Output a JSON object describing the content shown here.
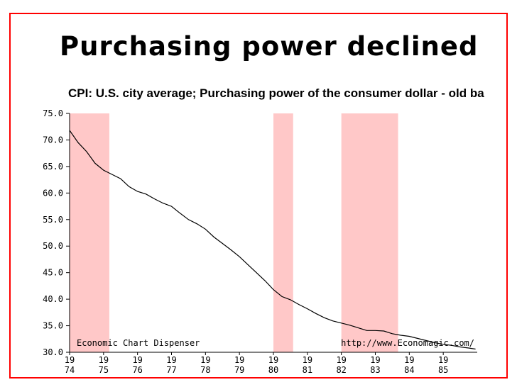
{
  "slide": {
    "title": "Purchasing power declined"
  },
  "chart_data": {
    "type": "line",
    "title": "CPI: U.S. city average; Purchasing power of the consumer dollar - old ba",
    "xlabel": "",
    "ylabel": "",
    "xlim": [
      1974,
      1986
    ],
    "ylim": [
      30,
      75
    ],
    "yticks": [
      "75.0",
      "70.0",
      "65.0",
      "60.0",
      "55.0",
      "50.0",
      "45.0",
      "40.0",
      "35.0",
      "30.0"
    ],
    "xticks": [
      {
        "year": 1974,
        "top": "19",
        "bottom": "74"
      },
      {
        "year": 1975,
        "top": "19",
        "bottom": "75"
      },
      {
        "year": 1976,
        "top": "19",
        "bottom": "76"
      },
      {
        "year": 1977,
        "top": "19",
        "bottom": "77"
      },
      {
        "year": 1978,
        "top": "19",
        "bottom": "78"
      },
      {
        "year": 1979,
        "top": "19",
        "bottom": "79"
      },
      {
        "year": 1980,
        "top": "19",
        "bottom": "80"
      },
      {
        "year": 1981,
        "top": "19",
        "bottom": "81"
      },
      {
        "year": 1982,
        "top": "19",
        "bottom": "82"
      },
      {
        "year": 1983,
        "top": "19",
        "bottom": "83"
      },
      {
        "year": 1984,
        "top": "19",
        "bottom": "84"
      },
      {
        "year": 1985,
        "top": "19",
        "bottom": "85"
      }
    ],
    "recessions": [
      [
        1974.0,
        1975.17
      ],
      [
        1980.0,
        1980.58
      ],
      [
        1982.0,
        1983.67
      ]
    ],
    "series": [
      {
        "name": "Purchasing power of the consumer dollar",
        "x": [
          1974.0,
          1974.25,
          1974.5,
          1974.75,
          1975.0,
          1975.25,
          1975.5,
          1975.75,
          1976.0,
          1976.25,
          1976.5,
          1976.75,
          1977.0,
          1977.25,
          1977.5,
          1977.75,
          1978.0,
          1978.25,
          1978.5,
          1978.75,
          1979.0,
          1979.25,
          1979.5,
          1979.75,
          1980.0,
          1980.25,
          1980.5,
          1980.75,
          1981.0,
          1981.25,
          1981.5,
          1981.75,
          1982.0,
          1982.25,
          1982.5,
          1982.75,
          1983.0,
          1983.25,
          1983.5,
          1983.75,
          1984.0,
          1984.25,
          1984.5,
          1984.75,
          1985.0,
          1985.25,
          1985.5,
          1985.75,
          1985.95
        ],
        "values": [
          71.8,
          69.5,
          67.8,
          65.6,
          64.3,
          63.5,
          62.7,
          61.2,
          60.3,
          59.8,
          58.9,
          58.1,
          57.5,
          56.2,
          55.0,
          54.2,
          53.2,
          51.7,
          50.5,
          49.3,
          48.0,
          46.5,
          45.0,
          43.5,
          41.8,
          40.5,
          39.9,
          39.0,
          38.2,
          37.3,
          36.5,
          35.9,
          35.5,
          35.1,
          34.6,
          34.1,
          34.1,
          34.0,
          33.5,
          33.2,
          33.0,
          32.6,
          32.2,
          31.8,
          31.5,
          31.3,
          31.0,
          30.8,
          30.6
        ]
      }
    ],
    "annotations": {
      "left": "Economic Chart Dispenser",
      "right": "http://www.Economagic.com/"
    },
    "colors": {
      "line": "#000000",
      "recession": "#ffc8c8",
      "frame": "#ff0000"
    }
  }
}
